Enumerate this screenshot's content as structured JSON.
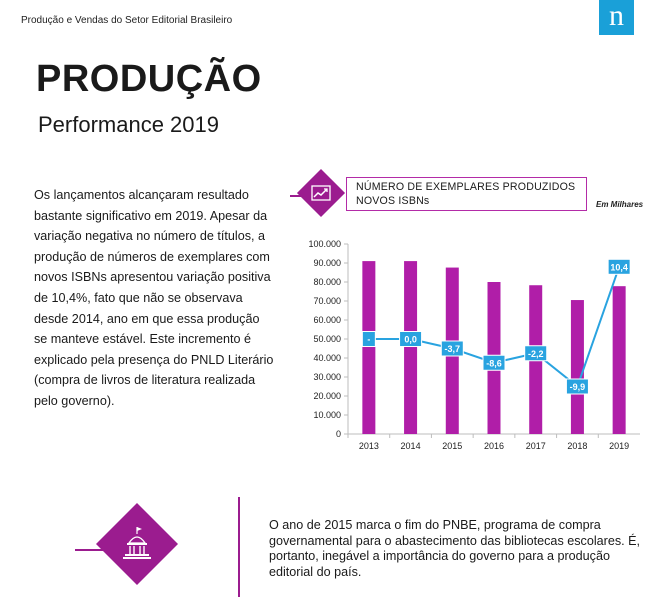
{
  "header": {
    "title": "Produção e Vendas do Setor Editorial Brasileiro",
    "logo": "n"
  },
  "page": {
    "title": "PRODUÇÃO",
    "subtitle": "Performance 2019"
  },
  "body_text": "Os lançamentos alcançaram resultado bastante significativo em 2019. Apesar da variação negativa no número de títulos, a produção de números de exemplares com novos ISBNs apresentou variação positiva de 10,4%, fato que não se observava desde 2014, ano em que essa produção se manteve estável. Este incremento é explicado pela presença do PNLD Literário (compra de livros de literatura realizada pelo governo).",
  "chart_header": {
    "title_line1": "NÚMERO DE EXEMPLARES PRODUZIDOS",
    "title_line2": "NOVOS ISBNs",
    "unit": "Em Milhares",
    "icon": "line-chart-icon"
  },
  "chart_data": {
    "type": "bar",
    "categories": [
      "2013",
      "2014",
      "2015",
      "2016",
      "2017",
      "2018",
      "2019"
    ],
    "series": [
      {
        "values": [
          91000,
          91000,
          87600,
          80000,
          78300,
          70500,
          77800
        ],
        "color": "#b01ea8"
      },
      {
        "type": "line",
        "values": [
          50000,
          50000,
          45000,
          37500,
          42500,
          25000,
          88000
        ],
        "labels": [
          "-",
          "0,0",
          "-3,7",
          "-8,6",
          "-2,2",
          "-9,9",
          "10,4"
        ],
        "color": "#29a3e0"
      }
    ],
    "yticks": [
      "0",
      "10.000",
      "20.000",
      "30.000",
      "40.000",
      "50.000",
      "60.000",
      "70.000",
      "80.000",
      "90.000",
      "100.000"
    ],
    "ylim": [
      0,
      100000
    ],
    "grid": false
  },
  "bottom": {
    "text": "O ano de 2015 marca o fim do PNBE, programa de compra governamental para o abastecimento das bibliotecas escolares. É, portanto, inegável a importância do governo para a produção editorial do país.",
    "icon": "government-building-icon"
  }
}
